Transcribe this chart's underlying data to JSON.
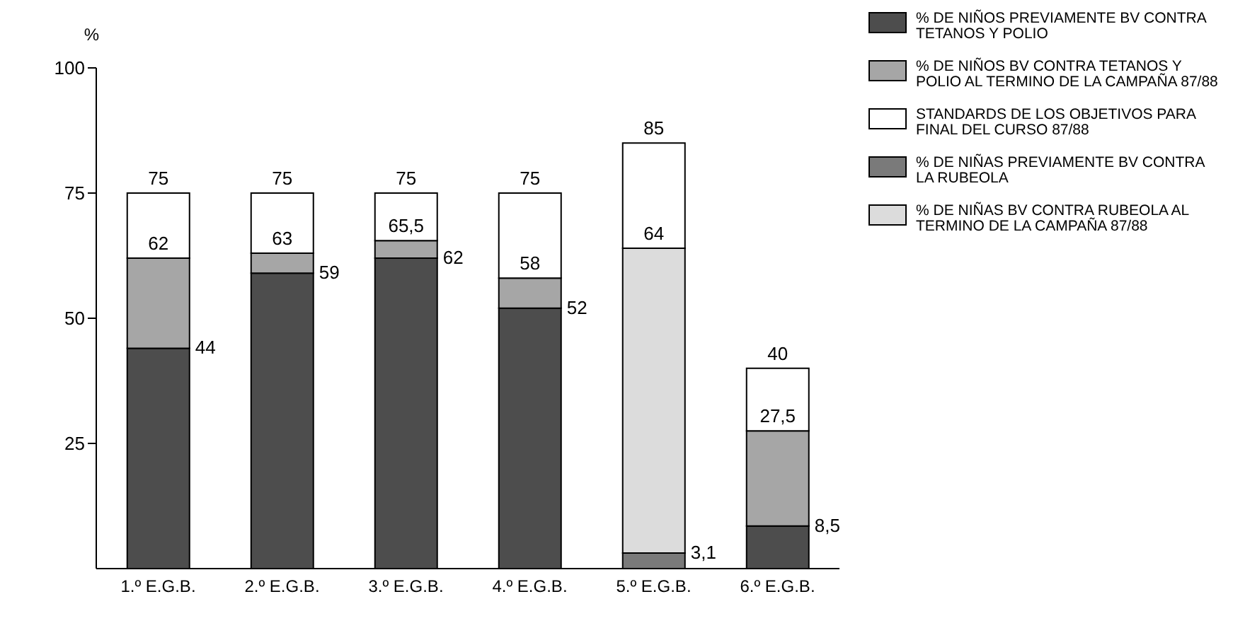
{
  "chart_data": {
    "type": "bar",
    "stacked": true,
    "ylabel": "%",
    "categories": [
      "1.º E.G.B.",
      "2.º E.G.B.",
      "3.º E.G.B.",
      "4.º E.G.B.",
      "5.º E.G.B.",
      "6.º E.G.B."
    ],
    "series": [
      {
        "name": "% DE NIÑOS PREVIAMENTE BV CONTRA TETANOS Y POLIO",
        "color": "#4d4d4d",
        "values": [
          44,
          59,
          62,
          52,
          null,
          8.5
        ]
      },
      {
        "name": "% DE NIÑAS PREVIAMENTE BV CONTRA LA RUBEOLA",
        "color": "#7a7a7a",
        "values": [
          null,
          null,
          null,
          null,
          3.1,
          null
        ]
      },
      {
        "name": "% DE NIÑAS BV CONTRA RUBEOLA AL TERMINO DE LA CAMPAÑA 87/88",
        "color": "#dcdcdc",
        "values": [
          null,
          null,
          null,
          null,
          60.9,
          null
        ]
      },
      {
        "name": "% DE NIÑOS BV CONTRA TETANOS Y POLIO AL TERMINO DE LA CAMPAÑA 87/88",
        "color": "#a6a6a6",
        "values": [
          18,
          4,
          3.5,
          6,
          null,
          19
        ]
      },
      {
        "name": "STANDARDS DE LOS OBJETIVOS PARA FINAL DEL CURSO 87/88",
        "color": "#ffffff",
        "values": [
          13,
          12,
          9.5,
          17,
          21,
          12.5
        ]
      }
    ],
    "annotations": [
      {
        "text": "44",
        "x": "1.º E.G.B.",
        "y": 44
      },
      {
        "text": "62",
        "x": "1.º E.G.B.",
        "y": 62
      },
      {
        "text": "75",
        "x": "1.º E.G.B.",
        "y": 75
      },
      {
        "text": "59",
        "x": "2.º E.G.B.",
        "y": 59
      },
      {
        "text": "63",
        "x": "2.º E.G.B.",
        "y": 63
      },
      {
        "text": "75",
        "x": "2.º E.G.B.",
        "y": 75
      },
      {
        "text": "62",
        "x": "3.º E.G.B.",
        "y": 62
      },
      {
        "text": "65,5",
        "x": "3.º E.G.B.",
        "y": 65.5
      },
      {
        "text": "75",
        "x": "3.º E.G.B.",
        "y": 75
      },
      {
        "text": "52",
        "x": "4.º E.G.B.",
        "y": 52
      },
      {
        "text": "58",
        "x": "4.º E.G.B.",
        "y": 58
      },
      {
        "text": "75",
        "x": "4.º E.G.B.",
        "y": 75
      },
      {
        "text": "3,1",
        "x": "5.º E.G.B.",
        "y": 3.1
      },
      {
        "text": "64",
        "x": "5.º E.G.B.",
        "y": 64
      },
      {
        "text": "85",
        "x": "5.º E.G.B.",
        "y": 85
      },
      {
        "text": "8,5",
        "x": "6.º E.G.B.",
        "y": 8.5
      },
      {
        "text": "27,5",
        "x": "6.º E.G.B.",
        "y": 27.5
      },
      {
        "text": "40",
        "x": "6.º E.G.B.",
        "y": 40
      }
    ],
    "ylim": [
      0,
      100
    ],
    "yticks": [
      25,
      50,
      75,
      100
    ],
    "grid": false,
    "legend": "top right"
  }
}
